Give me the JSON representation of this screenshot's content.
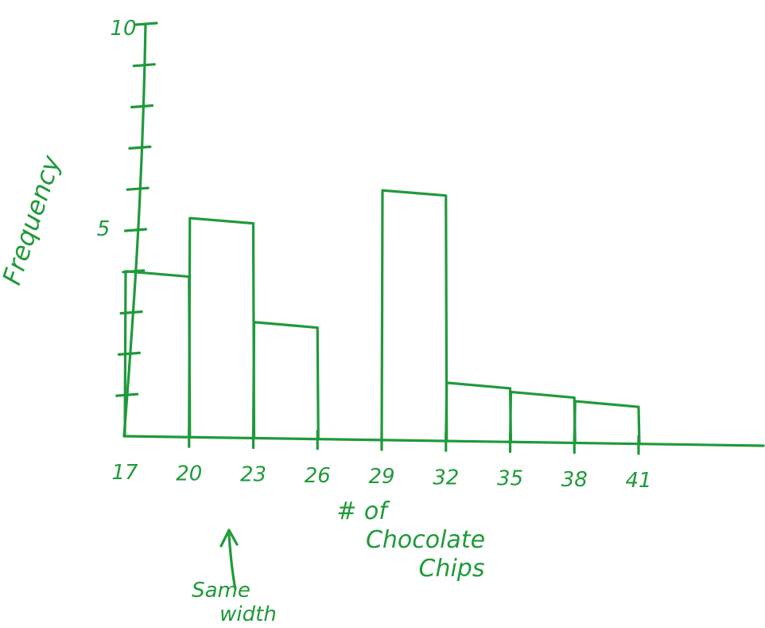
{
  "chart_data": {
    "type": "bar",
    "subtype": "histogram",
    "bins": [
      {
        "start": 17,
        "end": 20,
        "value": 4
      },
      {
        "start": 20,
        "end": 23,
        "value": 5.3
      },
      {
        "start": 23,
        "end": 26,
        "value": 2.8
      },
      {
        "start": 26,
        "end": 29,
        "value": 0
      },
      {
        "start": 29,
        "end": 32,
        "value": 6
      },
      {
        "start": 32,
        "end": 35,
        "value": 1.4
      },
      {
        "start": 35,
        "end": 38,
        "value": 1.2
      },
      {
        "start": 38,
        "end": 41,
        "value": 1
      }
    ],
    "x_ticks": [
      "17",
      "20",
      "23",
      "26",
      "29",
      "32",
      "35",
      "38",
      "41"
    ],
    "y_tick_labels": [
      {
        "value": 10,
        "label": "10"
      },
      {
        "value": 5,
        "label": "5"
      }
    ],
    "y_tick_count": 10,
    "ylim": [
      0,
      10
    ],
    "xlabel_lines": [
      "# of",
      "Chocolate",
      "Chips"
    ],
    "ylabel": "Frequency",
    "annotation": {
      "lines": [
        "Same",
        "width"
      ],
      "arrow": "up"
    },
    "grid": false,
    "ink_color": "#1f9a3a"
  }
}
